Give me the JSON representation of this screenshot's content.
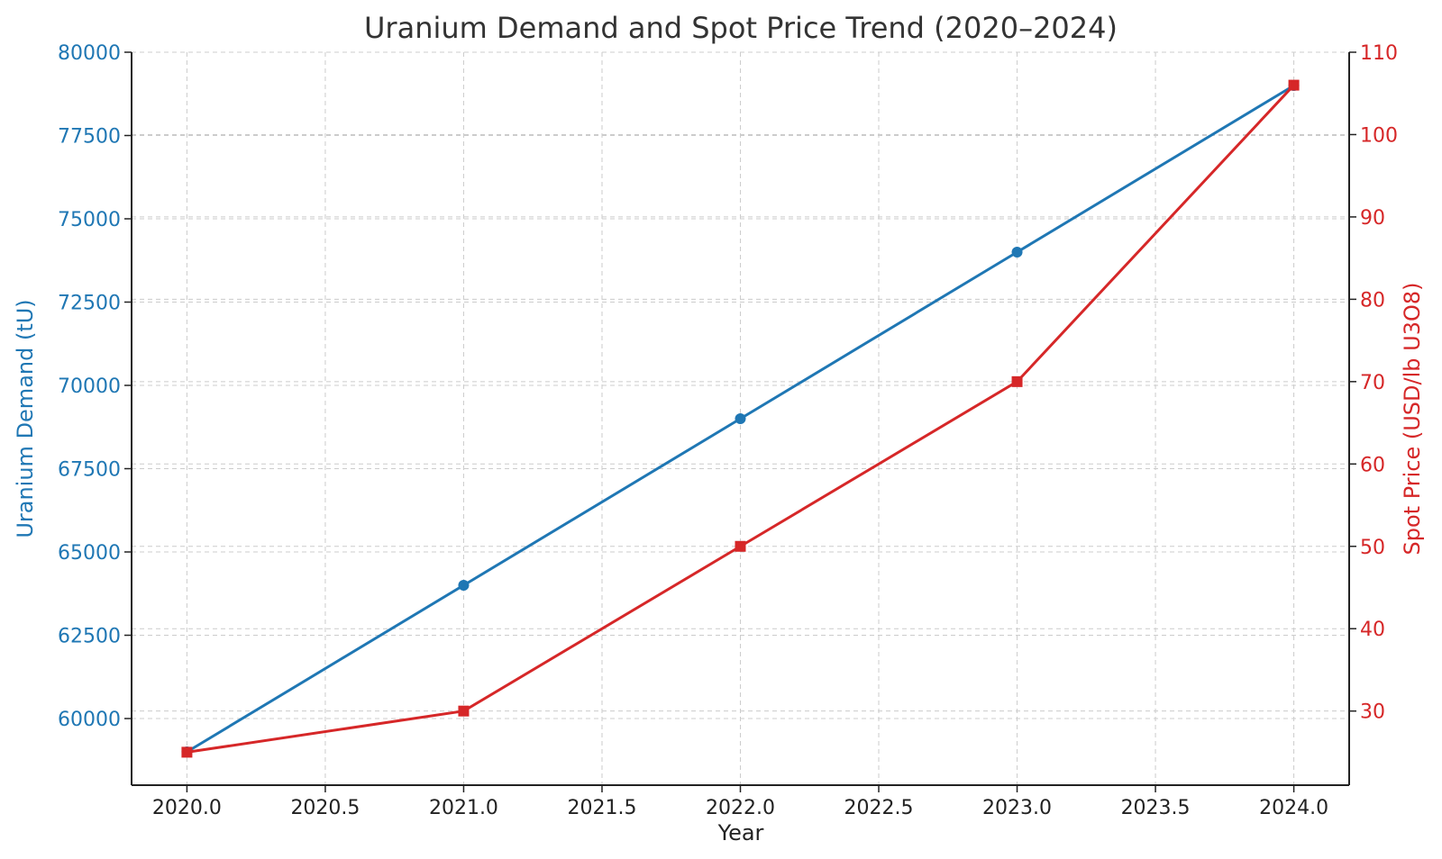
{
  "chart_data": {
    "type": "line",
    "title": "Uranium Demand and Spot Price Trend (2020–2024)",
    "xlabel": "Year",
    "ylabel_left": "Uranium Demand (tU)",
    "ylabel_right": "Spot Price (USD/lb U3O8)",
    "x": [
      2020,
      2021,
      2022,
      2023,
      2024
    ],
    "xlim": [
      2019.8,
      2024.2
    ],
    "xticks": [
      2020.0,
      2020.5,
      2021.0,
      2021.5,
      2022.0,
      2022.5,
      2023.0,
      2023.5,
      2024.0
    ],
    "xtick_labels": [
      "2020.0",
      "2020.5",
      "2021.0",
      "2021.5",
      "2022.0",
      "2022.5",
      "2023.0",
      "2023.5",
      "2024.0"
    ],
    "ylim_left": [
      58000,
      80000
    ],
    "yticks_left": [
      60000,
      62500,
      65000,
      67500,
      70000,
      72500,
      75000,
      77500,
      80000
    ],
    "ytick_labels_left": [
      "60000",
      "62500",
      "65000",
      "67500",
      "70000",
      "72500",
      "75000",
      "77500",
      "80000"
    ],
    "ylim_right": [
      21,
      110
    ],
    "yticks_right": [
      30,
      40,
      50,
      60,
      70,
      80,
      90,
      100,
      110
    ],
    "ytick_labels_right": [
      "30",
      "40",
      "50",
      "60",
      "70",
      "80",
      "90",
      "100",
      "110"
    ],
    "grid": true,
    "series": [
      {
        "axis": "left",
        "marker": "circle",
        "color": "#1f77b4",
        "values": [
          59000,
          64000,
          69000,
          74000,
          79000
        ]
      },
      {
        "axis": "right",
        "marker": "square",
        "color": "#d62728",
        "values": [
          25,
          30,
          50,
          70,
          106
        ]
      }
    ],
    "colors": {
      "left_axis": "#1f77b4",
      "right_axis": "#d62728",
      "grid": "#cccccc",
      "text": "#222222"
    }
  }
}
